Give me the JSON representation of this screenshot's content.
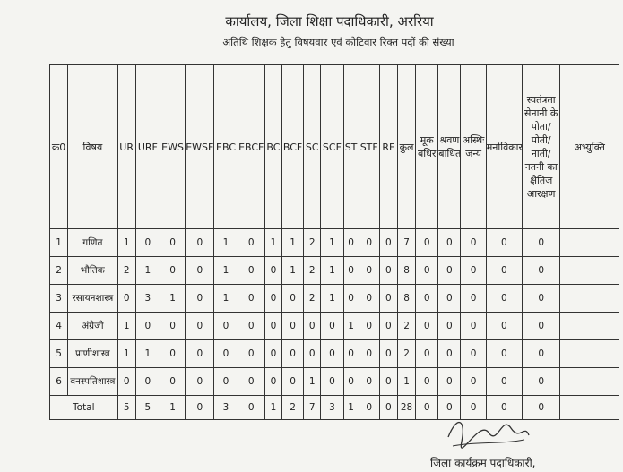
{
  "header": {
    "title": "कार्यालय, जिला शिक्षा पदाधिकारी, अररिया",
    "subtitle": "अतिथि शिक्षक हेतु विषयवार एवं कोटिवार रिक्त पदों की संख्या"
  },
  "table": {
    "columns": [
      "क्र0",
      "विषय",
      "UR",
      "URF",
      "EWS",
      "EWSF",
      "EBC",
      "EBCF",
      "BC",
      "BCF",
      "SC",
      "SCF",
      "ST",
      "STF",
      "RF",
      "कुल",
      "मूक बधिर",
      "श्रवण बाधित",
      "अस्थिः जन्य",
      "मनोविकार",
      "स्वतंत्रता सेनानी के पोता/पोती/नाती/नतनी का क्षैतिज आरक्षण",
      "अभ्युक्ति"
    ],
    "rows": [
      [
        1,
        "गणित",
        1,
        0,
        0,
        0,
        1,
        0,
        1,
        1,
        2,
        1,
        0,
        0,
        0,
        7,
        0,
        0,
        0,
        0,
        0
      ],
      [
        2,
        "भौतिक",
        2,
        1,
        0,
        0,
        1,
        0,
        0,
        1,
        2,
        1,
        0,
        0,
        0,
        8,
        0,
        0,
        0,
        0,
        0
      ],
      [
        3,
        "रसायनशास्त्र",
        0,
        3,
        1,
        0,
        1,
        0,
        0,
        0,
        2,
        1,
        0,
        0,
        0,
        8,
        0,
        0,
        0,
        0,
        0
      ],
      [
        4,
        "अंग्रेजी",
        1,
        0,
        0,
        0,
        0,
        0,
        0,
        0,
        0,
        0,
        1,
        0,
        0,
        2,
        0,
        0,
        0,
        0,
        0
      ],
      [
        5,
        "प्राणीशास्त्र",
        1,
        1,
        0,
        0,
        0,
        0,
        0,
        0,
        0,
        0,
        0,
        0,
        0,
        2,
        0,
        0,
        0,
        0,
        0
      ],
      [
        6,
        "वनस्पतिशास्त्र",
        0,
        0,
        0,
        0,
        0,
        0,
        0,
        0,
        1,
        0,
        0,
        0,
        0,
        1,
        0,
        0,
        0,
        0,
        0
      ]
    ],
    "total": [
      "Total",
      5,
      5,
      1,
      0,
      3,
      0,
      1,
      2,
      7,
      3,
      1,
      0,
      0,
      28,
      0,
      0,
      0,
      0,
      0
    ]
  },
  "footer": {
    "signature": "जिला कार्यक्रम पदाधिकारी,"
  }
}
